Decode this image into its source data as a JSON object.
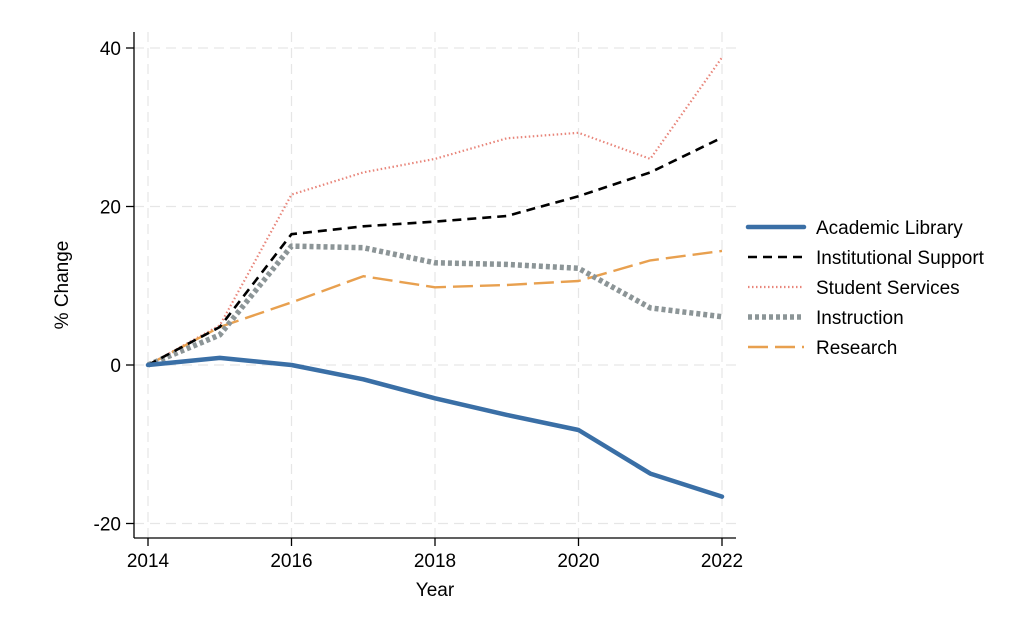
{
  "chart_data": {
    "type": "line",
    "title": "",
    "xlabel": "Year",
    "ylabel": "% Change",
    "x": [
      2014,
      2015,
      2016,
      2017,
      2018,
      2019,
      2020,
      2021,
      2022
    ],
    "xticks": [
      "2014",
      "2016",
      "2018",
      "2020",
      "2022"
    ],
    "xtick_values": [
      2014,
      2016,
      2018,
      2020,
      2022
    ],
    "yticks": [
      "-20",
      "0",
      "20",
      "40"
    ],
    "ytick_values": [
      -20,
      0,
      20,
      40
    ],
    "xlim": [
      2014,
      2022
    ],
    "ylim": [
      -21.5,
      41.5
    ],
    "grid": true,
    "legend_position": "right",
    "series": [
      {
        "name": "Academic Library",
        "color": "#3a6fa6",
        "style": "solid",
        "values": [
          0,
          0.9,
          0,
          -1.8,
          -4.2,
          -6.3,
          -8.2,
          -13.7,
          -16.6
        ]
      },
      {
        "name": "Institutional Support",
        "color": "#000000",
        "style": "dash",
        "values": [
          0,
          4.8,
          16.5,
          17.5,
          18.1,
          18.8,
          21.3,
          24.3,
          28.7
        ]
      },
      {
        "name": "Student Services",
        "color": "#e8857a",
        "style": "dot",
        "values": [
          0,
          5.0,
          21.5,
          24.3,
          26.0,
          28.6,
          29.3,
          26.0,
          38.8
        ]
      },
      {
        "name": "Instruction",
        "color": "#8c9597",
        "style": "dotted-thick",
        "values": [
          0,
          3.8,
          15.0,
          14.8,
          12.9,
          12.7,
          12.2,
          7.2,
          6.1
        ]
      },
      {
        "name": "Research",
        "color": "#e8a04f",
        "style": "longdash",
        "values": [
          0,
          4.8,
          7.9,
          11.2,
          9.8,
          10.1,
          10.6,
          13.2,
          14.4
        ]
      }
    ]
  }
}
